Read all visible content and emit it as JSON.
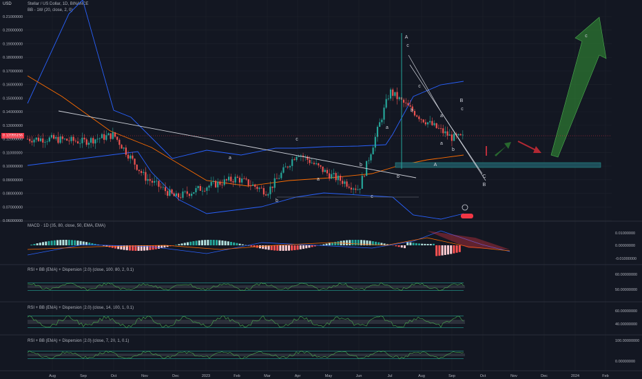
{
  "header": {
    "currency": "USD",
    "symbol_line": "Stellar / US Dollar, 1D, BINANCE",
    "bb_line": "BB - 1W (20, close, 2, 0)"
  },
  "price_scale": {
    "ticks": [
      "0.21000000",
      "0.20000000",
      "0.19000000",
      "0.18000000",
      "0.17000000",
      "0.16000000",
      "0.15000000",
      "0.14000000",
      "0.13000000",
      "0.12000000",
      "0.11000000",
      "0.10000000",
      "0.09000000",
      "0.08000000",
      "0.07000000",
      "0.06000000"
    ],
    "last_price": "0.12055156",
    "last_color": "#f23645"
  },
  "panes": {
    "macd": {
      "label": "MACD · 1D (35, 80, close, 50, EMA, EMA)",
      "ticks": [
        "0.01000000",
        "0.00000000",
        "-0.01000000"
      ]
    },
    "rsi1": {
      "label": "RSI + BB (EMA) + Dispersion (2.0) (close, 100, 80, 2, 0.1)",
      "ticks": [
        "60.00000000",
        "50.00000000"
      ]
    },
    "rsi2": {
      "label": "RSI + BB (EMA) + Dispersion (2.0) (close, 14, 100, 1, 0.1)",
      "ticks": [
        "60.00000000",
        "40.00000000"
      ]
    },
    "rsi3": {
      "label": "RSI + BB (EMA) + Dispersion (2.0) (close, 7, 20, 1, 0.1)",
      "ticks": [
        "100.00000000",
        "0.00000000"
      ]
    }
  },
  "time_axis": [
    "Aug",
    "Sep",
    "Oct",
    "Nov",
    "Dec",
    "2023",
    "Feb",
    "Mar",
    "Apr",
    "May",
    "Jun",
    "Jul",
    "Aug",
    "Sep",
    "Oct",
    "Nov",
    "Dec",
    "2024",
    "Feb"
  ],
  "wave_labels": [
    {
      "text": "A"
    },
    {
      "text": "c"
    },
    {
      "text": "a"
    },
    {
      "text": "b"
    },
    {
      "text": "B"
    },
    {
      "text": "c"
    },
    {
      "text": "a"
    },
    {
      "text": "b"
    },
    {
      "text": "c"
    },
    {
      "text": "a"
    },
    {
      "text": "b"
    },
    {
      "text": "a"
    },
    {
      "text": "b"
    },
    {
      "text": "c"
    },
    {
      "text": "A"
    },
    {
      "text": "C"
    },
    {
      "text": "B"
    },
    {
      "text": "c"
    },
    {
      "text": "a"
    },
    {
      "text": "b"
    },
    {
      "text": "c"
    }
  ],
  "colors": {
    "up": "#26a69a",
    "down": "#ef5350",
    "bb": "#2962ff",
    "basis": "#ff6d00",
    "projection": "#2e7d32"
  },
  "chart_data": {
    "type": "candlestick",
    "x_range": [
      "Jul 2022",
      "Feb 2024"
    ],
    "ylim": [
      0.055,
      0.215
    ],
    "series": [
      {
        "name": "Stellar / US Dollar",
        "x": [
          "Aug",
          "Sep",
          "Oct",
          "Nov",
          "Dec",
          "2023",
          "Feb",
          "Mar",
          "Apr",
          "May",
          "Jun",
          "Jul",
          "Aug",
          "Sep"
        ],
        "values": [
          0.12,
          0.118,
          0.123,
          0.092,
          0.077,
          0.085,
          0.091,
          0.081,
          0.11,
          0.094,
          0.083,
          0.155,
          0.135,
          0.121
        ]
      }
    ]
  }
}
